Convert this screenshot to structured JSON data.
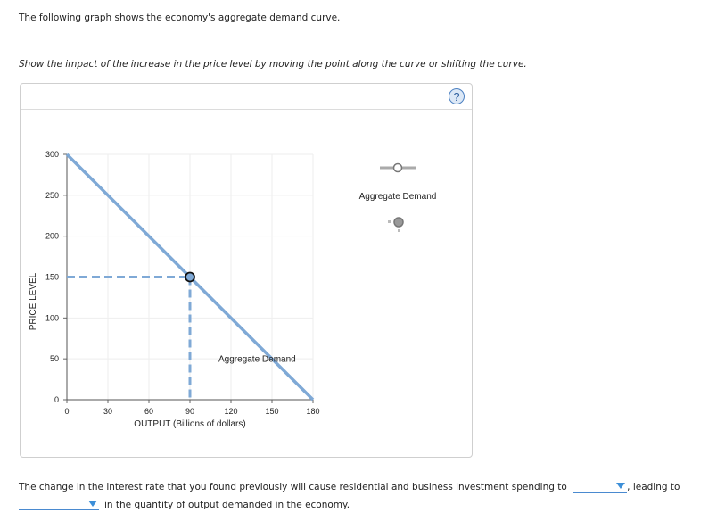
{
  "intro_text": "The following graph shows the economy's aggregate demand curve.",
  "instruction_text": "Show the impact of the increase in the price level by moving the point along the curve or shifting the curve.",
  "panel": {
    "help_label": "?",
    "legend": {
      "tool_label": "Aggregate Demand"
    }
  },
  "chart_data": {
    "type": "line",
    "title": "",
    "xlabel": "OUTPUT (Billions of dollars)",
    "ylabel": "PRICE LEVEL",
    "xlim": [
      0,
      180
    ],
    "ylim": [
      0,
      300
    ],
    "x_ticks": [
      "0",
      "30",
      "60",
      "90",
      "120",
      "150",
      "180"
    ],
    "y_ticks": [
      "0",
      "50",
      "100",
      "150",
      "200",
      "250",
      "300"
    ],
    "grid": true,
    "series": [
      {
        "name": "Aggregate Demand",
        "color": "#7fa9d6",
        "x": [
          0,
          180
        ],
        "y": [
          300,
          0
        ],
        "label": "Aggregate Demand",
        "label_position": [
          150,
          75
        ]
      }
    ],
    "highlighted_point": {
      "x": 90,
      "y": 150,
      "dashed_guides": true
    },
    "legend_position": "right"
  },
  "question": {
    "part1": "The change in the interest rate that you found previously will cause residential and business investment spending to",
    "dropdown1_value": "",
    "part2": ", leading to",
    "dropdown2_value": "",
    "part3": "in the quantity of output demanded in the economy."
  }
}
